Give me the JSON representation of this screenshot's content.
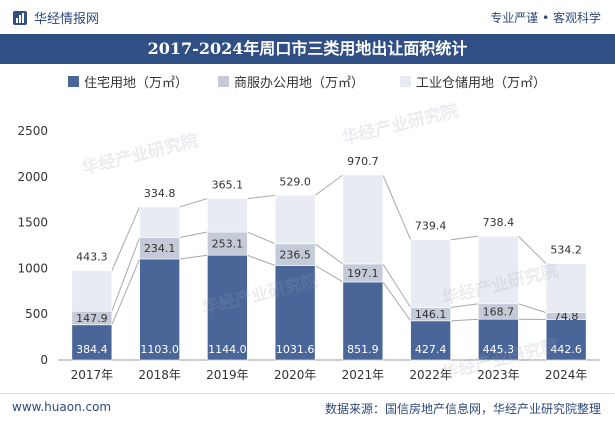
{
  "header": {
    "brand": "华经情报网",
    "tagline": "专业严谨 • 客观科学"
  },
  "watermark": "华经产业研究院",
  "footer": {
    "website": "www.huaon.com",
    "source": "数据来源：国信房地产信息网，华经产业研究院整理"
  },
  "colors": {
    "title_band": "#2f4f85",
    "residential": "#4a6699",
    "commercial": "#c4cad8",
    "industrial": "#e9ebf3",
    "connector": "#a9a9a9"
  },
  "chart_data": {
    "type": "bar",
    "stacked": true,
    "title": "2017-2024年周口市三类用地出让面积统计",
    "categories": [
      "2017年",
      "2018年",
      "2019年",
      "2020年",
      "2021年",
      "2022年",
      "2023年",
      "2024年"
    ],
    "series": [
      {
        "name": "住宅用地（万㎡）",
        "values": [
          384.4,
          1103.0,
          1144.0,
          1031.6,
          851.9,
          427.4,
          445.3,
          442.6
        ]
      },
      {
        "name": "商服办公用地（万㎡）",
        "values": [
          147.9,
          234.1,
          253.1,
          236.5,
          197.1,
          146.1,
          168.7,
          74.8
        ]
      },
      {
        "name": "工业仓储用地（万㎡）",
        "values": [
          443.3,
          334.8,
          365.1,
          529.0,
          970.7,
          739.4,
          738.4,
          534.2
        ]
      }
    ],
    "ylim": [
      0,
      2500
    ],
    "yticks": [
      0,
      500,
      1000,
      1500,
      2000,
      2500
    ],
    "xlabel": "",
    "ylabel": "",
    "legend_position": "top",
    "grid": false,
    "series_lines": true
  }
}
